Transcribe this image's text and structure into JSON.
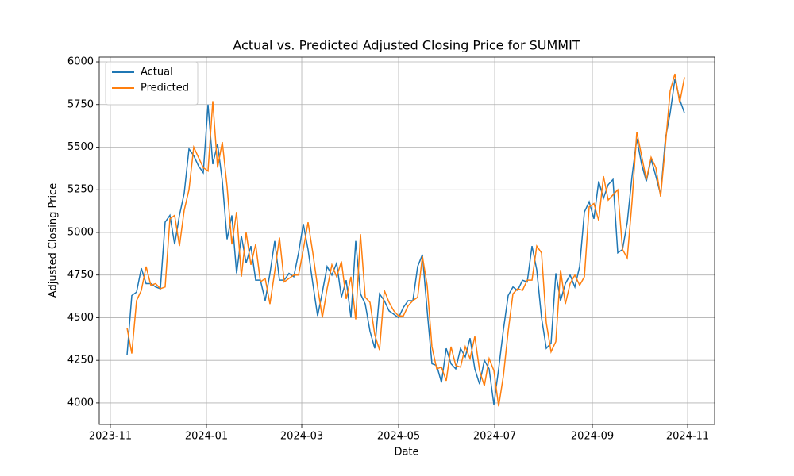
{
  "chart_data": {
    "type": "line",
    "title": "Actual vs. Predicted Adjusted Closing Price for SUMMIT",
    "xlabel": "Date",
    "ylabel": "Adjusted Closing Price",
    "categories": [
      null,
      null,
      null,
      null,
      null,
      null,
      null,
      null,
      null,
      null,
      null,
      null,
      null,
      null,
      null,
      null,
      null,
      null,
      null,
      null,
      null,
      null,
      null,
      null,
      null,
      null,
      null,
      null,
      null,
      null,
      null,
      null,
      null,
      null,
      null,
      null,
      null,
      null,
      null,
      null,
      null,
      null,
      null,
      null,
      null,
      null,
      null,
      null,
      null,
      null,
      null,
      null,
      null,
      null,
      null,
      null,
      null,
      null,
      null,
      null,
      null,
      null,
      null,
      null,
      null,
      null,
      null,
      null,
      null,
      null,
      null,
      null,
      null,
      null,
      null,
      null,
      null,
      null,
      null,
      null,
      null,
      null,
      null,
      null,
      null,
      null,
      null,
      null,
      null,
      null,
      null,
      null,
      null,
      null,
      null,
      null,
      null,
      null,
      null,
      null,
      null,
      null,
      null,
      null,
      null,
      null,
      null,
      null,
      null,
      null,
      null,
      null,
      null,
      null,
      null,
      null,
      null,
      null
    ],
    "series": [
      {
        "name": "Actual",
        "color": "#1f77b4",
        "values": [
          4280,
          4630,
          4650,
          4790,
          4700,
          4700,
          4680,
          4670,
          5060,
          5100,
          4930,
          5100,
          5230,
          5490,
          5450,
          5390,
          5350,
          5750,
          5400,
          5520,
          5300,
          4960,
          5100,
          4760,
          4980,
          4820,
          4920,
          4720,
          4720,
          4600,
          4760,
          4950,
          4720,
          4720,
          4760,
          4740,
          4880,
          5050,
          4900,
          4700,
          4510,
          4650,
          4800,
          4750,
          4820,
          4620,
          4720,
          4500,
          4950,
          4640,
          4580,
          4420,
          4320,
          4640,
          4600,
          4540,
          4520,
          4500,
          4560,
          4600,
          4600,
          4800,
          4870,
          4540,
          4230,
          4220,
          4120,
          4320,
          4230,
          4200,
          4320,
          4270,
          4380,
          4200,
          4110,
          4250,
          4200,
          3990,
          4200,
          4430,
          4630,
          4680,
          4660,
          4720,
          4710,
          4920,
          4780,
          4500,
          4320,
          4350,
          4760,
          4600,
          4700,
          4750,
          4680,
          4800,
          5120,
          5180,
          5080,
          5300,
          5200,
          5280,
          5310,
          4880,
          4900,
          5060,
          5330,
          5550,
          5400,
          5300,
          5430,
          5330,
          5220,
          5550,
          5700,
          5900,
          5780,
          5700
        ]
      },
      {
        "name": "Predicted",
        "color": "#ff7f0e",
        "values": [
          4440,
          4290,
          4600,
          4660,
          4800,
          4690,
          4700,
          4670,
          4680,
          5080,
          5100,
          4920,
          5130,
          5250,
          5500,
          5440,
          5380,
          5360,
          5770,
          5380,
          5530,
          5270,
          4930,
          5120,
          4740,
          5000,
          4810,
          4930,
          4710,
          4730,
          4580,
          4770,
          4970,
          4710,
          4730,
          4750,
          4750,
          4900,
          5060,
          4880,
          4680,
          4500,
          4670,
          4810,
          4740,
          4830,
          4610,
          4740,
          4490,
          4990,
          4620,
          4590,
          4400,
          4310,
          4660,
          4590,
          4540,
          4510,
          4510,
          4570,
          4600,
          4620,
          4860,
          4690,
          4330,
          4200,
          4210,
          4130,
          4330,
          4220,
          4210,
          4330,
          4260,
          4390,
          4190,
          4100,
          4260,
          4190,
          3980,
          4160,
          4420,
          4640,
          4670,
          4660,
          4720,
          4720,
          4920,
          4880,
          4470,
          4300,
          4360,
          4780,
          4580,
          4700,
          4750,
          4690,
          4740,
          5150,
          5170,
          5070,
          5330,
          5190,
          5220,
          5250,
          4900,
          4850,
          5180,
          5590,
          5450,
          5310,
          5440,
          5380,
          5210,
          5510,
          5830,
          5930,
          5760,
          5910
        ]
      }
    ],
    "xlim": [
      -5.83,
      123.33
    ],
    "xticks": [
      {
        "value": -3.5,
        "label": "2023-11"
      },
      {
        "value": 16.67,
        "label": "2024-01"
      },
      {
        "value": 36.67,
        "label": "2024-03"
      },
      {
        "value": 57,
        "label": "2024-05"
      },
      {
        "value": 77.17,
        "label": "2024-07"
      },
      {
        "value": 97.67,
        "label": "2024-09"
      },
      {
        "value": 117.67,
        "label": "2024-11"
      }
    ],
    "ylim": [
      3874,
      6028
    ],
    "yticks": [
      4000,
      4250,
      4500,
      4750,
      5000,
      5250,
      5500,
      5750,
      6000
    ],
    "grid": true,
    "legend": "upper left"
  }
}
